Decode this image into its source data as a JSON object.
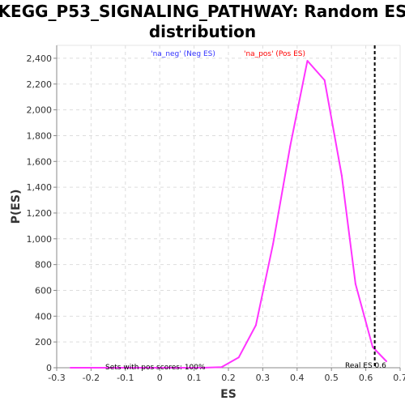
{
  "chart_data": {
    "type": "line",
    "title_line1": "KEGG_P53_SIGNALING_PATHWAY: Random ES",
    "title_line2": "distribution",
    "xlabel": "ES",
    "ylabel": "P(ES)",
    "xlim": [
      -0.3,
      0.7
    ],
    "ylim": [
      0,
      2500
    ],
    "x_ticks": [
      -0.3,
      -0.2,
      -0.1,
      0.0,
      0.1,
      0.2,
      0.3,
      0.4,
      0.5,
      0.6,
      0.7
    ],
    "x_tick_labels": [
      "-0.3",
      "-0.2",
      "-0.1",
      "0",
      "0.1",
      "0.2",
      "0.3",
      "0.4",
      "0.5",
      "0.6",
      "0.7"
    ],
    "y_ticks": [
      0,
      200,
      400,
      600,
      800,
      1000,
      1200,
      1400,
      1600,
      1800,
      2000,
      2200,
      2400
    ],
    "y_tick_labels": [
      "0",
      "200",
      "400",
      "600",
      "800",
      "1,000",
      "1,200",
      "1,400",
      "1,600",
      "1,800",
      "2,000",
      "2,200",
      "2,400"
    ],
    "grid": true,
    "series": [
      {
        "color": "#ff33ff",
        "x": [
          -0.26,
          -0.21,
          -0.16,
          -0.11,
          -0.06,
          -0.01,
          0.04,
          0.09,
          0.13,
          0.18,
          0.23,
          0.28,
          0.33,
          0.38,
          0.43,
          0.48,
          0.53,
          0.57,
          0.62,
          0.66
        ],
        "y": [
          0,
          0,
          0,
          0,
          0,
          0,
          0,
          0,
          0,
          5,
          80,
          330,
          960,
          1720,
          2380,
          2230,
          1490,
          650,
          160,
          50
        ]
      }
    ],
    "real_es": {
      "value": 0.626,
      "label": "Real ES 0.6",
      "color": "#000000"
    },
    "legend": {
      "neg_label": "'na_neg' (Neg ES)",
      "neg_color": "#3333ff",
      "pos_label": "'na_pos' (Pos ES)",
      "pos_color": "#ff0000"
    },
    "annotation": "Sets with pos scores: 100%"
  }
}
